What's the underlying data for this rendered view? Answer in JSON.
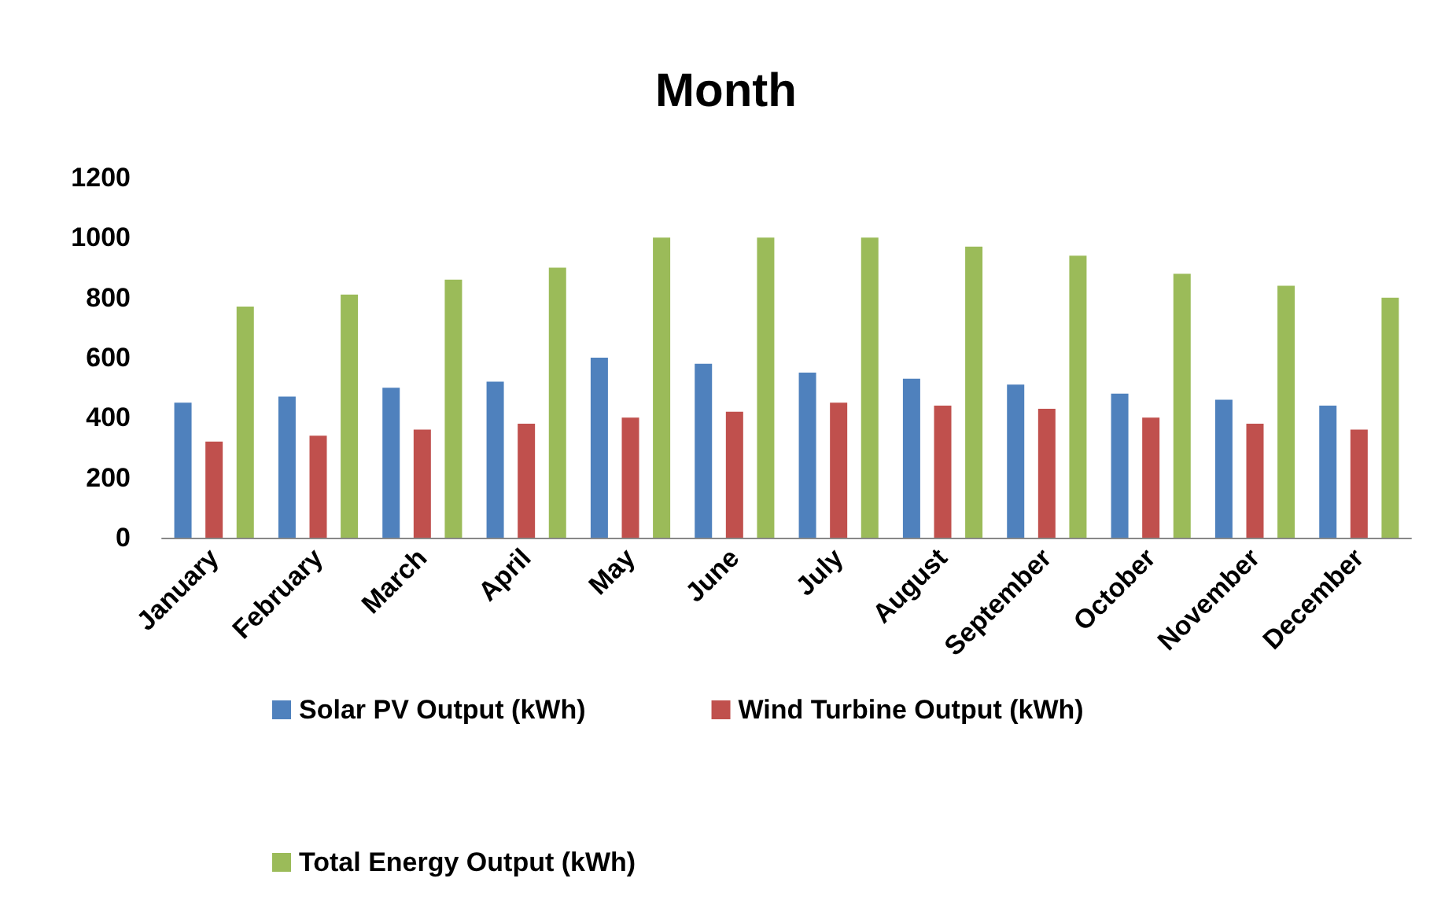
{
  "chart_data": {
    "type": "bar",
    "title": "Month",
    "categories": [
      "January",
      "February",
      "March",
      "April",
      "May",
      "June",
      "July",
      "August",
      "September",
      "October",
      "November",
      "December"
    ],
    "series": [
      {
        "name": "Solar PV Output (kWh)",
        "color": "#4f81bd",
        "values": [
          450,
          470,
          500,
          520,
          600,
          580,
          550,
          530,
          510,
          480,
          460,
          440
        ]
      },
      {
        "name": "Wind Turbine Output (kWh)",
        "color": "#c0504d",
        "values": [
          320,
          340,
          360,
          380,
          400,
          420,
          450,
          440,
          430,
          400,
          380,
          360
        ]
      },
      {
        "name": "Total Energy Output (kWh)",
        "color": "#9bbb59",
        "values": [
          770,
          810,
          860,
          900,
          1000,
          1000,
          1000,
          970,
          940,
          880,
          840,
          800
        ]
      }
    ],
    "ylim": [
      0,
      1200
    ],
    "yticks": [
      0,
      200,
      400,
      600,
      800,
      1000,
      1200
    ],
    "grid": false,
    "legend": "bottom"
  }
}
